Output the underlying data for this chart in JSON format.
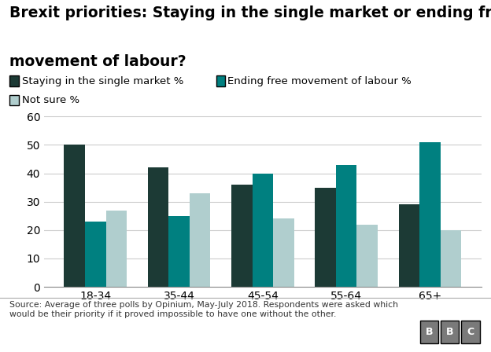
{
  "title_line1": "Brexit priorities: Staying in the single market or ending free",
  "title_line2": "movement of labour?",
  "categories": [
    "18-34",
    "35-44",
    "45-54",
    "55-64",
    "65+"
  ],
  "series": {
    "Staying in the single market %": [
      50,
      42,
      36,
      35,
      29
    ],
    "Ending free movement of labour %": [
      23,
      25,
      40,
      43,
      51
    ],
    "Not sure %": [
      27,
      33,
      24,
      22,
      20
    ]
  },
  "colors": {
    "Staying in the single market %": "#1c3a35",
    "Ending free movement of labour %": "#008080",
    "Not sure %": "#b0cece"
  },
  "ylim": [
    0,
    62
  ],
  "yticks": [
    0,
    10,
    20,
    30,
    40,
    50,
    60
  ],
  "footnote": "Source: Average of three polls by Opinium, May-July 2018. Respondents were asked which\nwould be their priority if it proved impossible to have one without the other.",
  "background_color": "#ffffff",
  "grid_color": "#cccccc",
  "title_fontsize": 13.5,
  "tick_fontsize": 10,
  "bar_width": 0.25,
  "legend_row1": [
    "Staying in the single market %",
    "Ending free movement of labour %"
  ],
  "legend_row2": [
    "Not sure %"
  ]
}
